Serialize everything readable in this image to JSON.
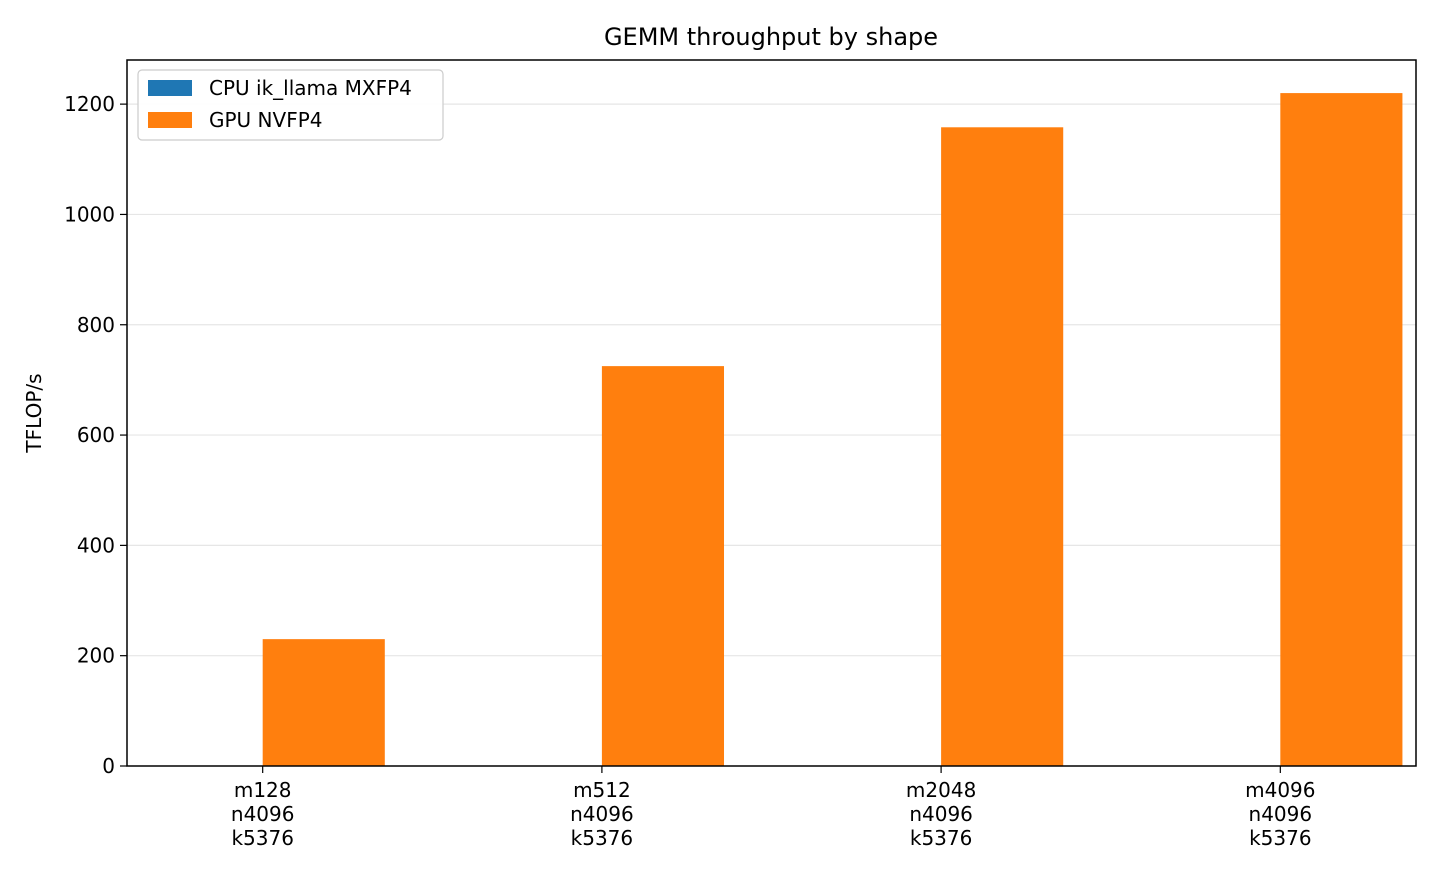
{
  "chart_data": {
    "type": "bar",
    "title": "GEMM throughput by shape",
    "xlabel": "",
    "ylabel": "TFLOP/s",
    "categories": [
      [
        "m128",
        "n4096",
        "k5376"
      ],
      [
        "m512",
        "n4096",
        "k5376"
      ],
      [
        "m2048",
        "n4096",
        "k5376"
      ],
      [
        "m4096",
        "n4096",
        "k5376"
      ]
    ],
    "series": [
      {
        "name": "CPU ik_llama MXFP4",
        "color": "#1f77b4",
        "values": [
          0,
          0,
          0,
          0
        ]
      },
      {
        "name": "GPU NVFP4",
        "color": "#ff7f0e",
        "values": [
          230,
          725,
          1158,
          1220
        ]
      }
    ],
    "ylim": [
      0,
      1280
    ],
    "yticks": [
      0,
      200,
      400,
      600,
      800,
      1000,
      1200
    ],
    "grid": "y",
    "legend_position": "top-left"
  }
}
